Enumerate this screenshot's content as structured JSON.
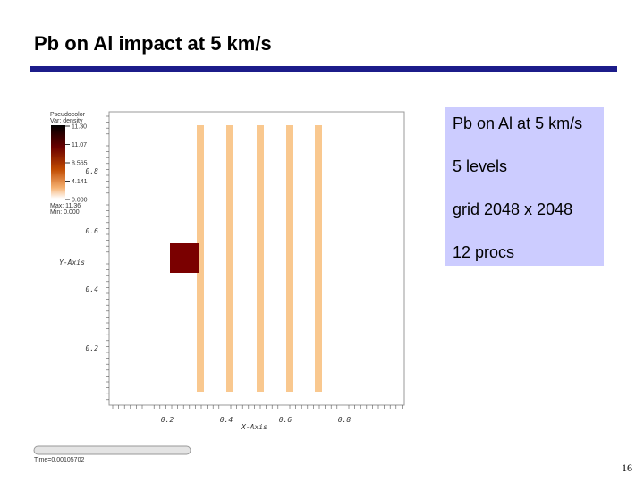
{
  "header": {
    "title": "Pb on Al impact at 5 km/s"
  },
  "plot": {
    "legend": {
      "title": "Pseudocolor",
      "variable": "Var: density",
      "labels": [
        "11.30",
        "11.07",
        "8.565",
        "4.141",
        "0.000"
      ],
      "max": "Max: 11.36",
      "min": "Min: 0.000"
    },
    "y_axis_label": "Y-Axis",
    "x_axis_label": "X-Axis",
    "y_ticks": [
      "0.8",
      "0.6",
      "0.4",
      "0.2"
    ],
    "x_ticks": [
      "0.2",
      "0.4",
      "0.6",
      "0.8"
    ],
    "time": "Time=0.00105702"
  },
  "info_box": {
    "lines": [
      "Pb on Al at 5 km/s",
      "5 levels",
      "grid 2048 x 2048",
      "12 procs"
    ]
  },
  "footer": {
    "page_number": "16"
  }
}
